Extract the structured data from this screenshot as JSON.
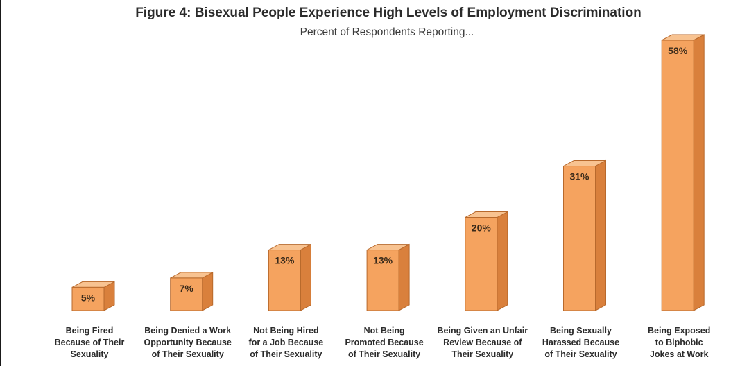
{
  "chart_data": {
    "type": "bar",
    "title": "Figure 4: Bisexual People Experience High Levels of Employment Discrimination",
    "subtitle": "Percent of Respondents Reporting...",
    "xlabel": "",
    "ylabel": "",
    "ylim": [
      0,
      60
    ],
    "grid": false,
    "legend": "none",
    "categories": [
      [
        "Being Fired",
        "Because of Their",
        "Sexuality"
      ],
      [
        "Being Denied a Work",
        "Opportunity Because",
        "of Their Sexuality"
      ],
      [
        "Not Being Hired",
        "for a Job Because",
        "of Their Sexuality"
      ],
      [
        "Not Being",
        "Promoted Because",
        "of Their Sexuality"
      ],
      [
        "Being Given an Unfair",
        "Review Because of",
        "Their Sexuality"
      ],
      [
        "Being Sexually",
        "Harassed Because",
        "of Their Sexuality"
      ],
      [
        "Being Exposed",
        "to Biphobic",
        "Jokes at Work"
      ]
    ],
    "values": [
      5,
      7,
      13,
      13,
      20,
      31,
      58
    ],
    "value_labels": [
      "5%",
      "7%",
      "13%",
      "13%",
      "20%",
      "31%",
      "58%"
    ],
    "colors": {
      "bar_front": "#f5a35f",
      "bar_top": "#f8c391",
      "bar_side": "#d9803c",
      "bar_edge": "#b8692c"
    }
  }
}
